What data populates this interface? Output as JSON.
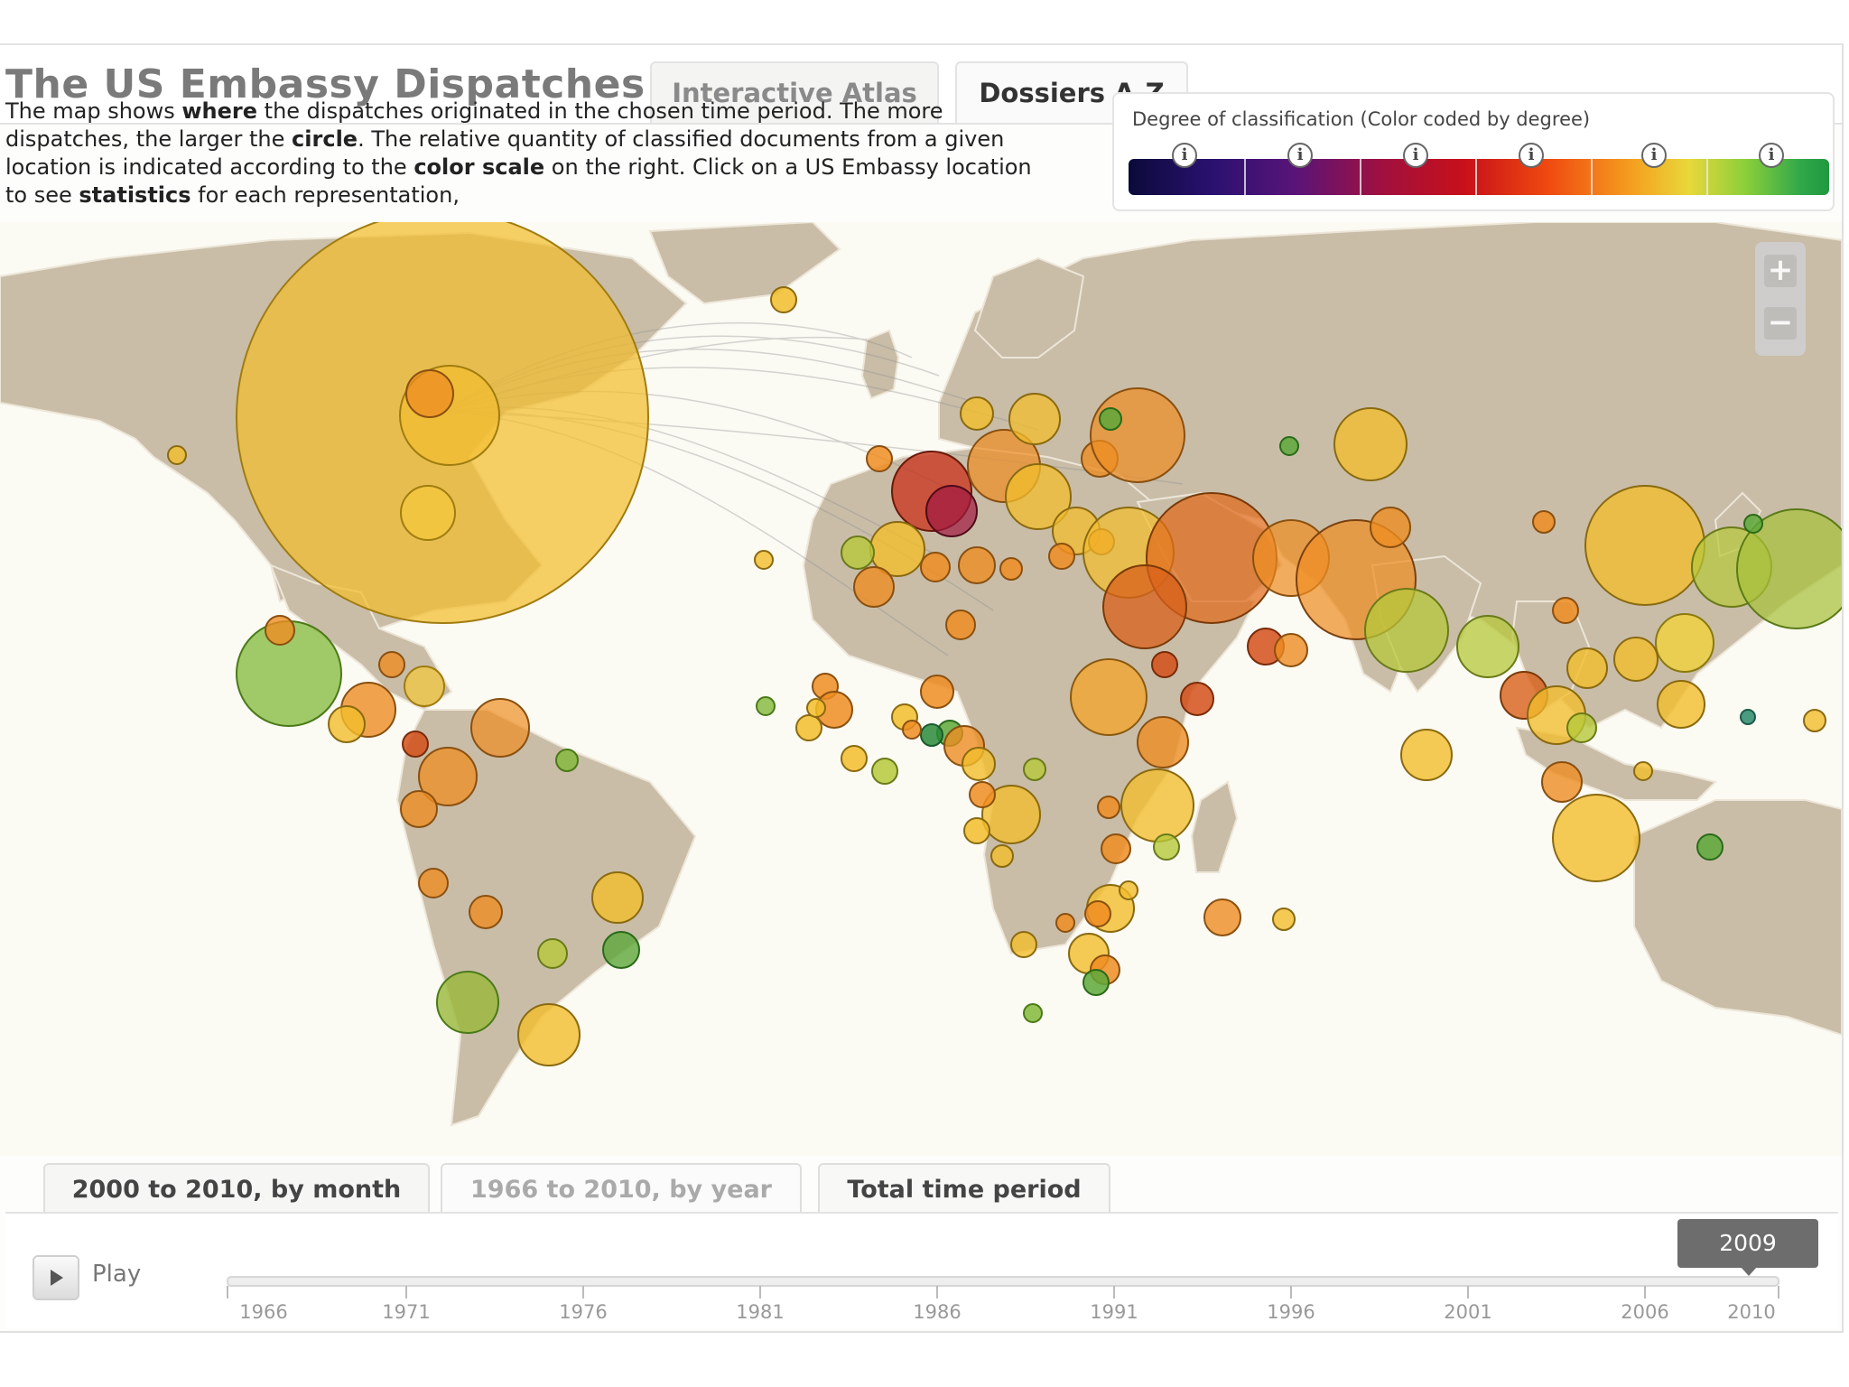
{
  "app": {
    "title": "The US Embassy Dispatches"
  },
  "nav": {
    "tabs": [
      {
        "label": "Interactive Atlas"
      },
      {
        "label": "Dossiers A-Z"
      }
    ]
  },
  "description": {
    "t1": "The map shows ",
    "b1": "where",
    "t2": " the dispatches originated in the chosen time period. The more dispatches, the larger the ",
    "b2": "circle",
    "t3": ". The relative quantity of classified documents from a given location is indicated according to the ",
    "b3": "color scale",
    "t4": " on the right. Click on a US Embassy location to see ",
    "b4": "statistics",
    "t5": " for each representation,"
  },
  "legend": {
    "title": "Degree of classification (Color coded by degree)",
    "info_symbol": "i",
    "info_count": 6
  },
  "zoom": {
    "in": "+",
    "out": "−"
  },
  "time_tabs": [
    {
      "label": "2000 to 2010, by month"
    },
    {
      "label": "1966 to 2010, by year"
    },
    {
      "label": "Total time period"
    }
  ],
  "timeline": {
    "play_label": "Play",
    "ticks": [
      "1966",
      "1971",
      "1976",
      "1981",
      "1986",
      "1991",
      "1996",
      "2001",
      "2006",
      "2010"
    ],
    "selected_year": "2009"
  },
  "colors": {
    "ocean": "#fbfaf3",
    "land": "#c9bda8",
    "border": "#ede6d8",
    "circle_yellow": "#f2bd2c",
    "circle_orange": "#ee8d22",
    "circle_red": "#d4501a",
    "circle_green": "#82b83a"
  }
}
